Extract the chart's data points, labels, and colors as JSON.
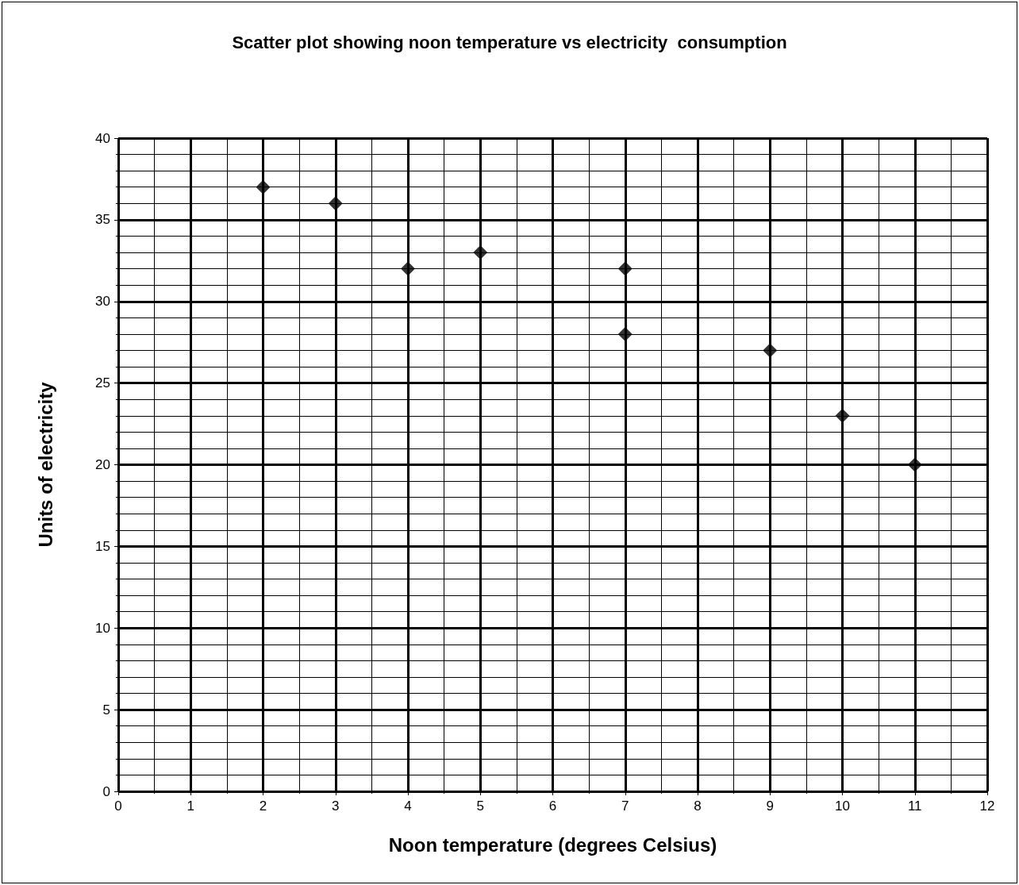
{
  "chart_data": {
    "type": "scatter",
    "title": "Scatter plot showing noon temperature vs electricity  consumption",
    "xlabel": "Noon temperature (degrees Celsius)",
    "ylabel": "Units of electricity",
    "x": [
      2,
      3,
      4,
      5,
      7,
      7,
      9,
      10,
      11
    ],
    "values": [
      37,
      36,
      32,
      33,
      32,
      28,
      27,
      23,
      20
    ],
    "color": "#000000",
    "marker": "diamond",
    "grid": true,
    "xlim": [
      0,
      12
    ],
    "xticks": [
      0,
      1,
      2,
      3,
      4,
      5,
      6,
      7,
      8,
      9,
      10,
      11,
      12
    ],
    "ylim": [
      0,
      40
    ],
    "yticks": [
      0,
      5,
      10,
      15,
      20,
      25,
      30,
      35,
      40
    ]
  }
}
